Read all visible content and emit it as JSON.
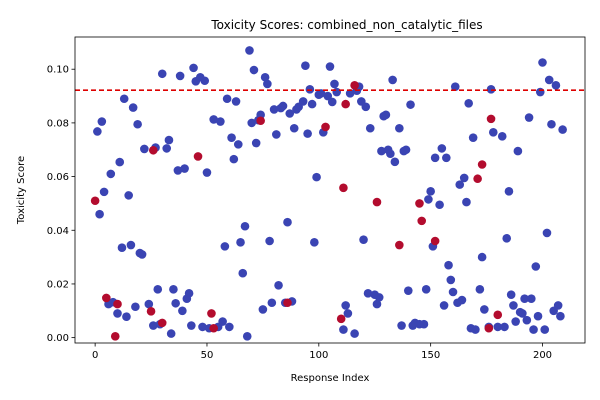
{
  "chart_data": {
    "type": "scatter",
    "title": "Toxicity Scores: combined_non_catalytic_files",
    "xlabel": "Response Index",
    "ylabel": "Toxicity Score",
    "xlim": [
      -9,
      219
    ],
    "ylim": [
      -0.002,
      0.112
    ],
    "xticks": [
      0,
      50,
      100,
      150,
      200
    ],
    "yticks": [
      0.0,
      0.02,
      0.04,
      0.06,
      0.08,
      0.1
    ],
    "x_tick_labels": [
      "0",
      "50",
      "100",
      "150",
      "200"
    ],
    "y_tick_labels": [
      "0.00",
      "0.02",
      "0.04",
      "0.06",
      "0.08",
      "0.10"
    ],
    "threshold": {
      "y": 0.0922,
      "color": "#dd0000",
      "style": "dashed"
    },
    "colors": {
      "below": "#3a44b3",
      "above": "#b30c2e"
    },
    "series": [
      {
        "color": "#3a44b3",
        "points": [
          [
            1,
            0.0768
          ],
          [
            2,
            0.046
          ],
          [
            3,
            0.0805
          ],
          [
            4,
            0.0543
          ],
          [
            6,
            0.0125
          ],
          [
            7,
            0.061
          ],
          [
            8,
            0.0132
          ],
          [
            10,
            0.009
          ],
          [
            11,
            0.0654
          ],
          [
            12,
            0.0335
          ],
          [
            13,
            0.089
          ],
          [
            14,
            0.0078
          ],
          [
            15,
            0.053
          ],
          [
            16,
            0.0345
          ],
          [
            17,
            0.0857
          ],
          [
            18,
            0.0115
          ],
          [
            19,
            0.0795
          ],
          [
            20,
            0.0315
          ],
          [
            21,
            0.031
          ],
          [
            22,
            0.0703
          ],
          [
            24,
            0.0125
          ],
          [
            26,
            0.0045
          ],
          [
            27,
            0.0708
          ],
          [
            28,
            0.018
          ],
          [
            29,
            0.005
          ],
          [
            30,
            0.0983
          ],
          [
            32,
            0.0705
          ],
          [
            33,
            0.0736
          ],
          [
            34,
            0.0015
          ],
          [
            35,
            0.018
          ],
          [
            36,
            0.0128
          ],
          [
            37,
            0.0623
          ],
          [
            38,
            0.0975
          ],
          [
            39,
            0.01
          ],
          [
            40,
            0.063
          ],
          [
            41,
            0.0145
          ],
          [
            42,
            0.0165
          ],
          [
            43,
            0.0045
          ],
          [
            44,
            0.1005
          ],
          [
            45,
            0.0955
          ],
          [
            47,
            0.097
          ],
          [
            48,
            0.004
          ],
          [
            49,
            0.0957
          ],
          [
            50,
            0.0615
          ],
          [
            51,
            0.0035
          ],
          [
            53,
            0.0813
          ],
          [
            55,
            0.004
          ],
          [
            56,
            0.0805
          ],
          [
            57,
            0.006
          ],
          [
            58,
            0.034
          ],
          [
            59,
            0.089
          ],
          [
            60,
            0.004
          ],
          [
            61,
            0.0745
          ],
          [
            62,
            0.0665
          ],
          [
            63,
            0.088
          ],
          [
            64,
            0.072
          ],
          [
            65,
            0.0355
          ],
          [
            66,
            0.024
          ],
          [
            67,
            0.0415
          ],
          [
            68,
            0.0005
          ],
          [
            69,
            0.107
          ],
          [
            70,
            0.08
          ],
          [
            71,
            0.0997
          ],
          [
            72,
            0.0725
          ],
          [
            73,
            0.081
          ],
          [
            74,
            0.083
          ],
          [
            75,
            0.0105
          ],
          [
            76,
            0.097
          ],
          [
            77,
            0.0945
          ],
          [
            78,
            0.036
          ],
          [
            79,
            0.013
          ],
          [
            80,
            0.085
          ],
          [
            81,
            0.0757
          ],
          [
            82,
            0.0195
          ],
          [
            83,
            0.0855
          ],
          [
            84,
            0.0863
          ],
          [
            85,
            0.013
          ],
          [
            86,
            0.043
          ],
          [
            87,
            0.0835
          ],
          [
            88,
            0.0135
          ],
          [
            89,
            0.078
          ],
          [
            90,
            0.085
          ],
          [
            91,
            0.086
          ],
          [
            93,
            0.088
          ],
          [
            94,
            0.1013
          ],
          [
            95,
            0.076
          ],
          [
            96,
            0.0925
          ],
          [
            97,
            0.087
          ],
          [
            98,
            0.0355
          ],
          [
            99,
            0.0598
          ],
          [
            100,
            0.0905
          ],
          [
            101,
            0.091
          ],
          [
            102,
            0.0765
          ],
          [
            104,
            0.09
          ],
          [
            105,
            0.101
          ],
          [
            106,
            0.0878
          ],
          [
            107,
            0.0945
          ],
          [
            108,
            0.0915
          ],
          [
            111,
            0.003
          ],
          [
            112,
            0.012
          ],
          [
            113,
            0.009
          ],
          [
            114,
            0.091
          ],
          [
            116,
            0.0015
          ],
          [
            117,
            0.092
          ],
          [
            118,
            0.0935
          ],
          [
            119,
            0.088
          ],
          [
            120,
            0.0365
          ],
          [
            121,
            0.086
          ],
          [
            122,
            0.0165
          ],
          [
            123,
            0.078
          ],
          [
            125,
            0.016
          ],
          [
            126,
            0.0125
          ],
          [
            127,
            0.015
          ],
          [
            128,
            0.0695
          ],
          [
            129,
            0.0825
          ],
          [
            130,
            0.083
          ],
          [
            131,
            0.07
          ],
          [
            132,
            0.0685
          ],
          [
            133,
            0.096
          ],
          [
            134,
            0.0655
          ],
          [
            136,
            0.078
          ],
          [
            137,
            0.0045
          ],
          [
            138,
            0.0695
          ],
          [
            139,
            0.07
          ],
          [
            140,
            0.0175
          ],
          [
            141,
            0.0868
          ],
          [
            142,
            0.0045
          ],
          [
            143,
            0.0055
          ],
          [
            145,
            0.005
          ],
          [
            147,
            0.005
          ],
          [
            148,
            0.018
          ],
          [
            149,
            0.0515
          ],
          [
            150,
            0.0545
          ],
          [
            151,
            0.034
          ],
          [
            152,
            0.067
          ],
          [
            154,
            0.0495
          ],
          [
            155,
            0.0705
          ],
          [
            156,
            0.012
          ],
          [
            157,
            0.067
          ],
          [
            158,
            0.027
          ],
          [
            159,
            0.0215
          ],
          [
            160,
            0.017
          ],
          [
            161,
            0.0935
          ],
          [
            162,
            0.013
          ],
          [
            163,
            0.057
          ],
          [
            164,
            0.014
          ],
          [
            165,
            0.0595
          ],
          [
            166,
            0.0505
          ],
          [
            167,
            0.0873
          ],
          [
            168,
            0.0035
          ],
          [
            169,
            0.0745
          ],
          [
            170,
            0.003
          ],
          [
            172,
            0.018
          ],
          [
            173,
            0.03
          ],
          [
            174,
            0.0105
          ],
          [
            176,
            0.004
          ],
          [
            177,
            0.0925
          ],
          [
            178,
            0.0765
          ],
          [
            180,
            0.004
          ],
          [
            182,
            0.075
          ],
          [
            183,
            0.004
          ],
          [
            184,
            0.037
          ],
          [
            185,
            0.0545
          ],
          [
            186,
            0.016
          ],
          [
            187,
            0.012
          ],
          [
            188,
            0.006
          ],
          [
            189,
            0.0695
          ],
          [
            190,
            0.0095
          ],
          [
            191,
            0.009
          ],
          [
            192,
            0.0145
          ],
          [
            193,
            0.0065
          ],
          [
            194,
            0.082
          ],
          [
            195,
            0.0145
          ],
          [
            196,
            0.003
          ],
          [
            197,
            0.0265
          ],
          [
            198,
            0.008
          ],
          [
            199,
            0.0915
          ],
          [
            200,
            0.1025
          ],
          [
            201,
            0.003
          ],
          [
            202,
            0.039
          ],
          [
            203,
            0.096
          ],
          [
            204,
            0.0795
          ],
          [
            205,
            0.01
          ],
          [
            206,
            0.094
          ],
          [
            207,
            0.012
          ],
          [
            208,
            0.008
          ],
          [
            209,
            0.0775
          ]
        ]
      },
      {
        "color": "#b30c2e",
        "points": [
          [
            0,
            0.051
          ],
          [
            5,
            0.0148
          ],
          [
            9,
            0.0005
          ],
          [
            10,
            0.0125
          ],
          [
            25,
            0.0098
          ],
          [
            26,
            0.0698
          ],
          [
            30,
            0.0055
          ],
          [
            46,
            0.0675
          ],
          [
            52,
            0.009
          ],
          [
            53,
            0.0035
          ],
          [
            74,
            0.0808
          ],
          [
            86,
            0.013
          ],
          [
            103,
            0.0785
          ],
          [
            110,
            0.007
          ],
          [
            111,
            0.0558
          ],
          [
            112,
            0.087
          ],
          [
            116,
            0.094
          ],
          [
            126,
            0.0505
          ],
          [
            136,
            0.0345
          ],
          [
            145,
            0.05
          ],
          [
            146,
            0.0435
          ],
          [
            152,
            0.036
          ],
          [
            171,
            0.0592
          ],
          [
            173,
            0.0645
          ],
          [
            176,
            0.0035
          ],
          [
            177,
            0.0815
          ],
          [
            180,
            0.0085
          ]
        ]
      }
    ]
  }
}
